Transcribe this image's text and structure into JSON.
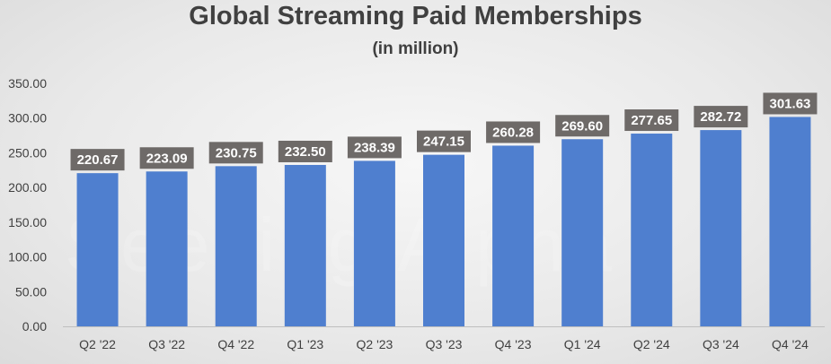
{
  "chart_data": {
    "type": "bar",
    "title": "Global Streaming Paid Memberships",
    "subtitle": "(in million)",
    "categories": [
      "Q2 '22",
      "Q3 '22",
      "Q4 '22",
      "Q1 '23",
      "Q2 '23",
      "Q3 '23",
      "Q4 '23",
      "Q1 '24",
      "Q2 '24",
      "Q3 '24",
      "Q4 '24"
    ],
    "values": [
      220.67,
      223.09,
      230.75,
      232.5,
      238.39,
      247.15,
      260.28,
      269.6,
      277.65,
      282.72,
      301.63
    ],
    "data_labels": [
      "220.67",
      "223.09",
      "230.75",
      "232.50",
      "238.39",
      "247.15",
      "260.28",
      "269.60",
      "277.65",
      "282.72",
      "301.63"
    ],
    "y_ticks": [
      "0.00",
      "50.00",
      "100.00",
      "150.00",
      "200.00",
      "250.00",
      "300.00",
      "350.00"
    ],
    "ylim": [
      0,
      350
    ],
    "xlabel": "",
    "ylabel": "",
    "grid": false,
    "bar_color": "#4f7fcf",
    "label_box_color": "#6e6a68"
  },
  "watermark": "Seeking Alpha"
}
